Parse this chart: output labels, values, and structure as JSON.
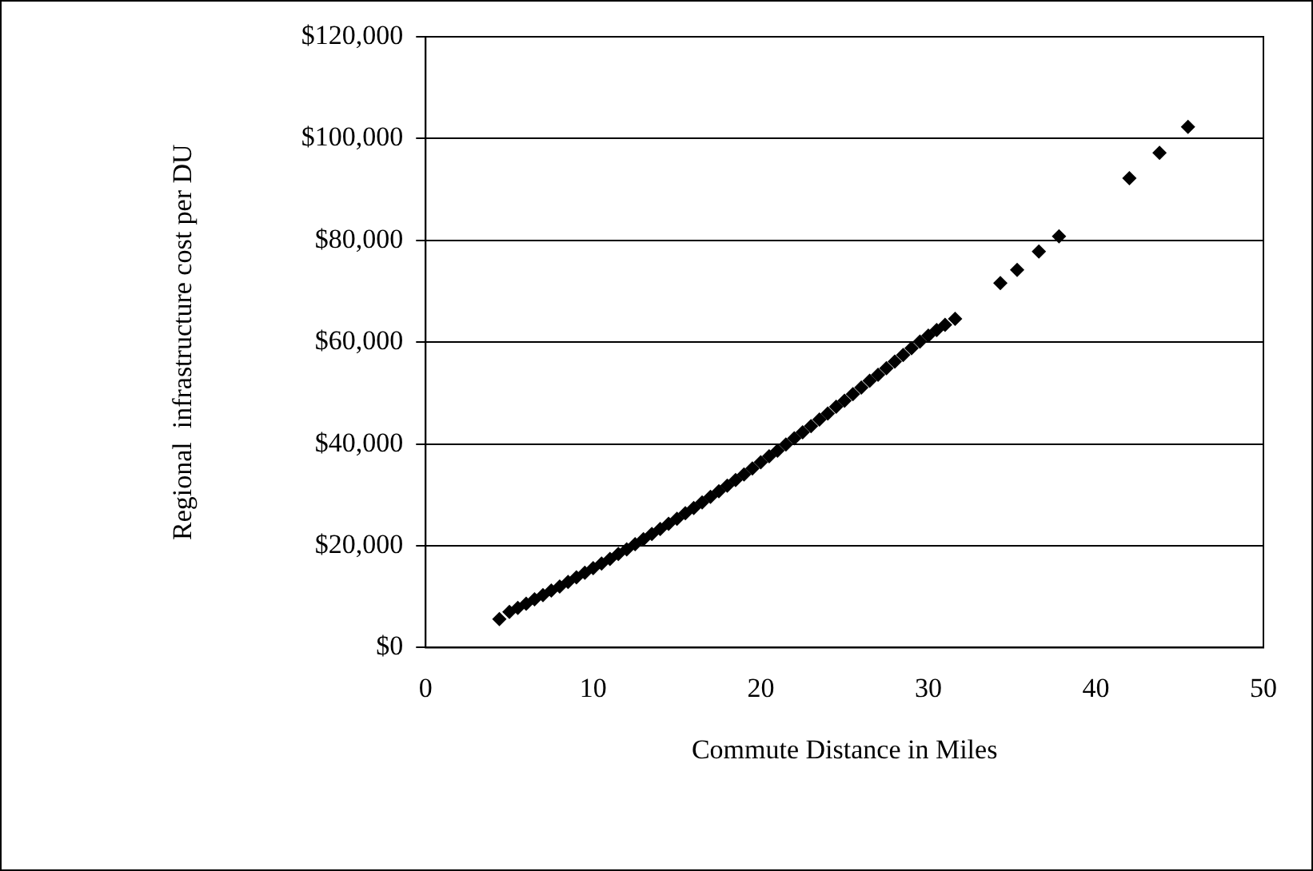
{
  "chart_data": {
    "type": "scatter",
    "xlabel": "Commute Distance in Miles",
    "ylabel": "Regional  infrastructure cost per DU",
    "x": [
      4.4,
      5,
      5.5,
      6,
      6.5,
      7,
      7.5,
      8,
      8.5,
      9,
      9.5,
      10,
      10.5,
      11,
      11.5,
      12,
      12.5,
      13,
      13.5,
      14,
      14.5,
      15,
      15.5,
      16,
      16.5,
      17,
      17.5,
      18,
      18.5,
      19,
      19.5,
      20,
      20.5,
      21,
      21.5,
      22,
      22.5,
      23,
      23.5,
      24,
      24.5,
      25,
      25.5,
      26,
      26.5,
      27,
      27.5,
      28,
      28.5,
      29,
      29.5,
      30,
      30.5,
      31,
      31.6,
      34.3,
      35.3,
      36.6,
      37.8,
      42,
      43.8,
      45.5
    ],
    "series": [
      {
        "color": "#000000",
        "values": [
          5600,
          7000,
          7800,
          8600,
          9500,
          10300,
          11200,
          12000,
          12900,
          13800,
          14700,
          15600,
          16500,
          17400,
          18400,
          19300,
          20300,
          21300,
          22300,
          23300,
          24300,
          25300,
          26400,
          27400,
          28500,
          29600,
          30700,
          31800,
          32900,
          34000,
          35200,
          36400,
          37600,
          38700,
          39900,
          41100,
          42300,
          43500,
          44800,
          46000,
          47300,
          48500,
          49800,
          51100,
          52400,
          53600,
          54900,
          56200,
          57500,
          58800,
          60100,
          61300,
          62400,
          63400,
          64600,
          71600,
          74200,
          77800,
          80800,
          92200,
          97200,
          102300
        ]
      }
    ],
    "xlim": [
      0,
      50
    ],
    "xticks": [
      0,
      10,
      20,
      30,
      40,
      50
    ],
    "ylim": [
      0,
      120000
    ],
    "yticks": [
      {
        "value": 0,
        "label": "$0"
      },
      {
        "value": 20000,
        "label": "$20,000"
      },
      {
        "value": 40000,
        "label": "$40,000"
      },
      {
        "value": 60000,
        "label": "$60,000"
      },
      {
        "value": 80000,
        "label": "$80,000"
      },
      {
        "value": 100000,
        "label": "$100,000"
      },
      {
        "value": 120000,
        "label": "$120,000"
      }
    ],
    "grid": "y",
    "legend": false,
    "marker": "diamond"
  }
}
